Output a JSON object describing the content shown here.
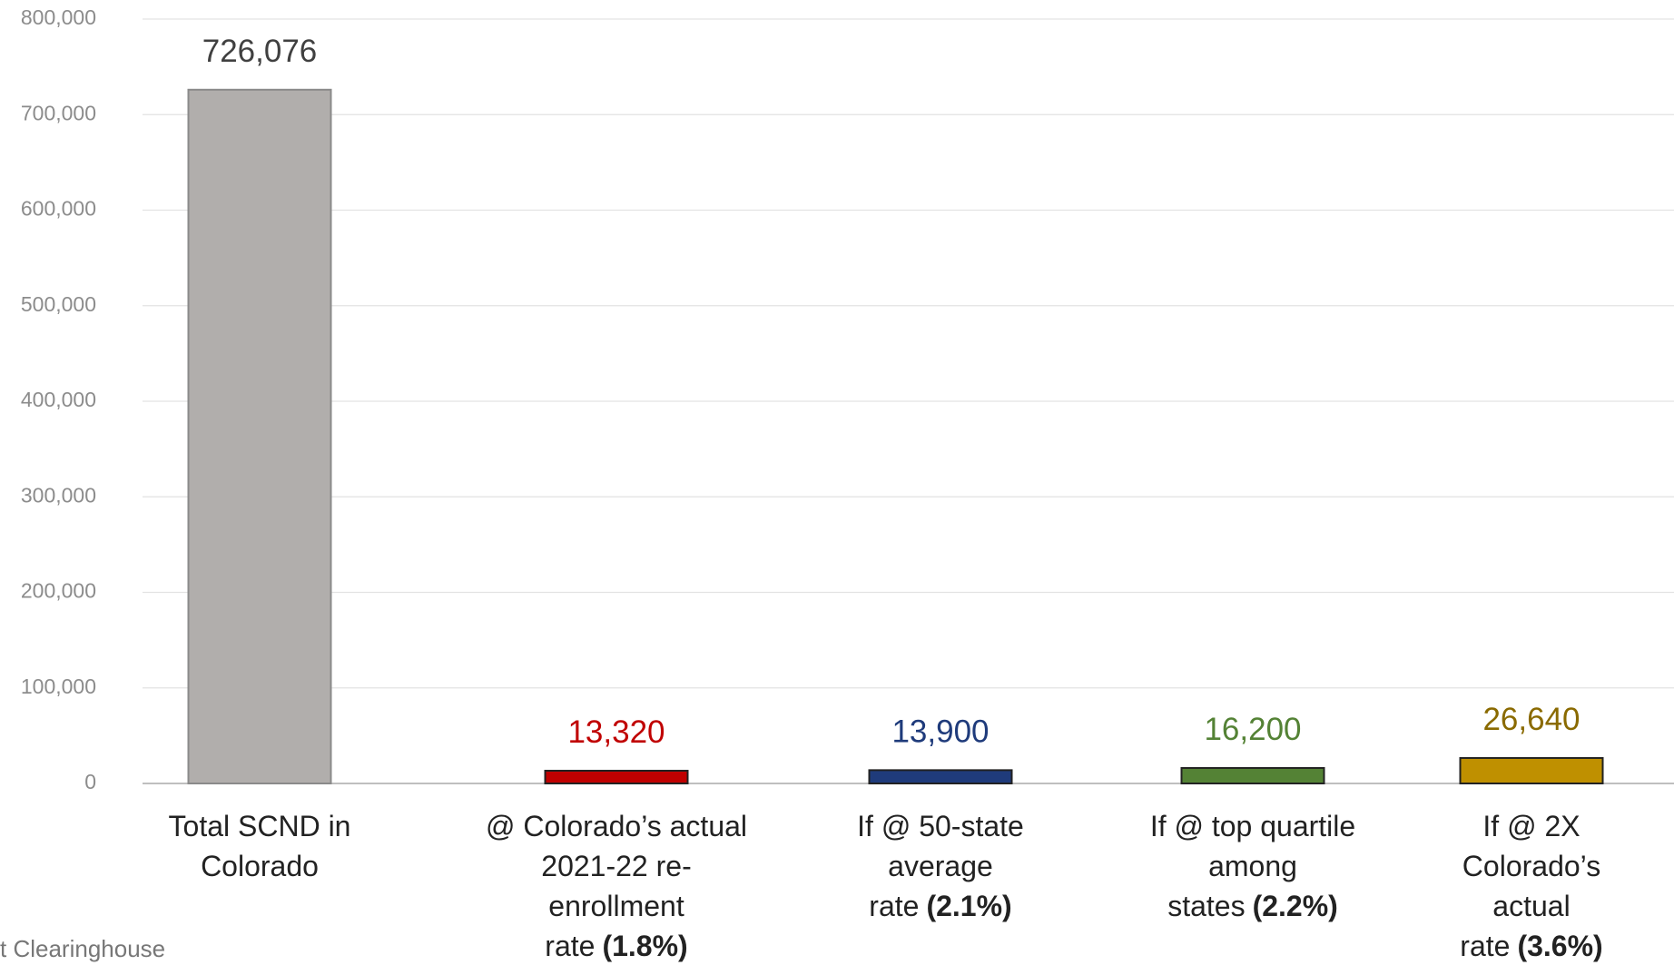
{
  "chart_data": {
    "type": "bar",
    "categories": [
      "Total SCND in Colorado",
      "@ Colorado’s actual 2021-22 re-enrollment rate",
      "If @ 50-state average rate",
      "If @ top quartile among states",
      "If @ 2X Colorado’s actual rate"
    ],
    "category_notes": [
      null,
      "(1.8%)",
      "(2.1%)",
      "(2.2%)",
      "(3.6%)"
    ],
    "values": [
      726076,
      13320,
      13900,
      16200,
      26640
    ],
    "value_labels": [
      "726,076",
      "13,320",
      "13,900",
      "16,200",
      "26,640"
    ],
    "colors": [
      "#b1aeac",
      "#c00000",
      "#1f3b7b",
      "#548235",
      "#bf9000"
    ],
    "label_colors": [
      "#404040",
      "#c00000",
      "#1f3b7b",
      "#548235",
      "#8a6a00"
    ],
    "ylim": [
      0,
      800000
    ],
    "yticks": [
      {
        "value": 0,
        "label": "0"
      },
      {
        "value": 100000,
        "label": "100,000"
      },
      {
        "value": 200000,
        "label": "200,000"
      },
      {
        "value": 300000,
        "label": "300,000"
      },
      {
        "value": 400000,
        "label": "400,000"
      },
      {
        "value": 500000,
        "label": "500,000"
      },
      {
        "value": 600000,
        "label": "600,000"
      },
      {
        "value": 700000,
        "label": "700,000"
      },
      {
        "value": 800000,
        "label": "800,000"
      }
    ],
    "grid": true,
    "source": "t Clearinghouse"
  }
}
